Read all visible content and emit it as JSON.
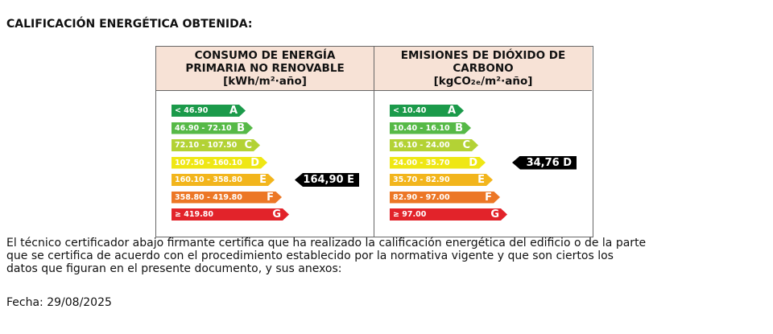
{
  "header": {
    "title": "CALIFICACIÓN ENERGÉTICA OBTENIDA:"
  },
  "panels": [
    {
      "heading": [
        "CONSUMO DE ENERGÍA",
        "PRIMARIA NO RENOVABLE",
        "[kWh/m²·año]"
      ],
      "scale": [
        {
          "range": "< 46.90",
          "letter": "A"
        },
        {
          "range": "46.90 - 72.10",
          "letter": "B"
        },
        {
          "range": "72.10 - 107.50",
          "letter": "C"
        },
        {
          "range": "107.50 - 160.10",
          "letter": "D"
        },
        {
          "range": "160.10 - 358.80",
          "letter": "E"
        },
        {
          "range": "358.80 - 419.80",
          "letter": "F"
        },
        {
          "range": "≥ 419.80",
          "letter": "G"
        }
      ],
      "result": "164,90 E"
    },
    {
      "heading": [
        "EMISIONES DE DIÓXIDO DE",
        "CARBONO",
        "[kgCO₂ₑ/m²·año]"
      ],
      "scale": [
        {
          "range": "< 10.40",
          "letter": "A"
        },
        {
          "range": "10.40 - 16.10",
          "letter": "B"
        },
        {
          "range": "16.10 - 24.00",
          "letter": "C"
        },
        {
          "range": "24.00 - 35.70",
          "letter": "D"
        },
        {
          "range": "35.70 - 82.90",
          "letter": "E"
        },
        {
          "range": "82.90 - 97.00",
          "letter": "F"
        },
        {
          "range": "≥ 97.00",
          "letter": "G"
        }
      ],
      "result": "34,76 D"
    }
  ],
  "statement": [
    "El técnico certificador abajo firmante certifica que ha realizado la calificación energética del edificio o de la parte",
    "que se certifica de acuerdo con el procedimiento establecido por la normativa vigente y que son ciertos los",
    "datos que figuran en el presente documento, y sus anexos:"
  ],
  "date": "Fecha: 29/08/2025"
}
